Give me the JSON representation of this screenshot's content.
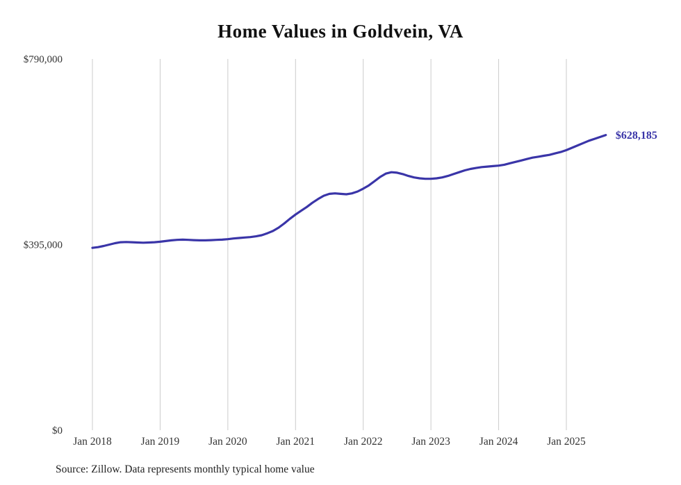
{
  "title": "Home Values in Goldvein, VA",
  "source_note": "Source: Zillow. Data represents monthly typical home value",
  "end_label": "$628,185",
  "colors": {
    "line": "#3a35a8",
    "grid": "#cbcbcb",
    "axis_text": "#333333",
    "title_text": "#111111",
    "background": "#ffffff"
  },
  "chart_data": {
    "type": "line",
    "title": "Home Values in Goldvein, VA",
    "xlabel": "",
    "ylabel": "",
    "ylim": [
      0,
      790000
    ],
    "grid": "vertical-only",
    "legend": "none",
    "yticks": [
      {
        "value": 0,
        "label": "$0"
      },
      {
        "value": 395000,
        "label": "$395,000"
      },
      {
        "value": 790000,
        "label": "$790,000"
      }
    ],
    "xticks": [
      {
        "index": 0,
        "label": "Jan 2018"
      },
      {
        "index": 12,
        "label": "Jan 2019"
      },
      {
        "index": 24,
        "label": "Jan 2020"
      },
      {
        "index": 36,
        "label": "Jan 2021"
      },
      {
        "index": 48,
        "label": "Jan 2022"
      },
      {
        "index": 60,
        "label": "Jan 2023"
      },
      {
        "index": 72,
        "label": "Jan 2024"
      },
      {
        "index": 84,
        "label": "Jan 2025"
      }
    ],
    "x": [
      "2018-01",
      "2018-02",
      "2018-03",
      "2018-04",
      "2018-05",
      "2018-06",
      "2018-07",
      "2018-08",
      "2018-09",
      "2018-10",
      "2018-11",
      "2018-12",
      "2019-01",
      "2019-02",
      "2019-03",
      "2019-04",
      "2019-05",
      "2019-06",
      "2019-07",
      "2019-08",
      "2019-09",
      "2019-10",
      "2019-11",
      "2019-12",
      "2020-01",
      "2020-02",
      "2020-03",
      "2020-04",
      "2020-05",
      "2020-06",
      "2020-07",
      "2020-08",
      "2020-09",
      "2020-10",
      "2020-11",
      "2020-12",
      "2021-01",
      "2021-02",
      "2021-03",
      "2021-04",
      "2021-05",
      "2021-06",
      "2021-07",
      "2021-08",
      "2021-09",
      "2021-10",
      "2021-11",
      "2021-12",
      "2022-01",
      "2022-02",
      "2022-03",
      "2022-04",
      "2022-05",
      "2022-06",
      "2022-07",
      "2022-08",
      "2022-09",
      "2022-10",
      "2022-11",
      "2022-12",
      "2023-01",
      "2023-02",
      "2023-03",
      "2023-04",
      "2023-05",
      "2023-06",
      "2023-07",
      "2023-08",
      "2023-09",
      "2023-10",
      "2023-11",
      "2023-12",
      "2024-01",
      "2024-02",
      "2024-03",
      "2024-04",
      "2024-05",
      "2024-06",
      "2024-07",
      "2024-08",
      "2024-09",
      "2024-10",
      "2024-11",
      "2024-12",
      "2025-01",
      "2025-02",
      "2025-03",
      "2025-04",
      "2025-05",
      "2025-06",
      "2025-07",
      "2025-08"
    ],
    "values": [
      388000,
      389500,
      392000,
      395000,
      398000,
      400000,
      400500,
      400000,
      399500,
      399000,
      399500,
      400000,
      401000,
      402500,
      404000,
      405000,
      405500,
      405000,
      404500,
      404000,
      404000,
      404500,
      405000,
      405500,
      406500,
      408000,
      409000,
      410000,
      411000,
      412500,
      415000,
      419000,
      424000,
      431000,
      440000,
      450000,
      459000,
      467000,
      475000,
      484000,
      492000,
      499000,
      503000,
      504000,
      503000,
      502000,
      504000,
      508000,
      514000,
      521000,
      530000,
      539000,
      546000,
      549000,
      548000,
      545000,
      541000,
      538000,
      536000,
      535000,
      535000,
      536000,
      538000,
      541000,
      545000,
      549000,
      553000,
      556000,
      558000,
      560000,
      561000,
      562000,
      563000,
      565000,
      568000,
      571000,
      574000,
      577000,
      580000,
      582000,
      584000,
      586000,
      589000,
      592000,
      596000,
      601000,
      606000,
      611000,
      616000,
      620000,
      624000,
      628185
    ],
    "end_annotation": {
      "text": "$628,185",
      "position": "right-of-last-point"
    }
  }
}
